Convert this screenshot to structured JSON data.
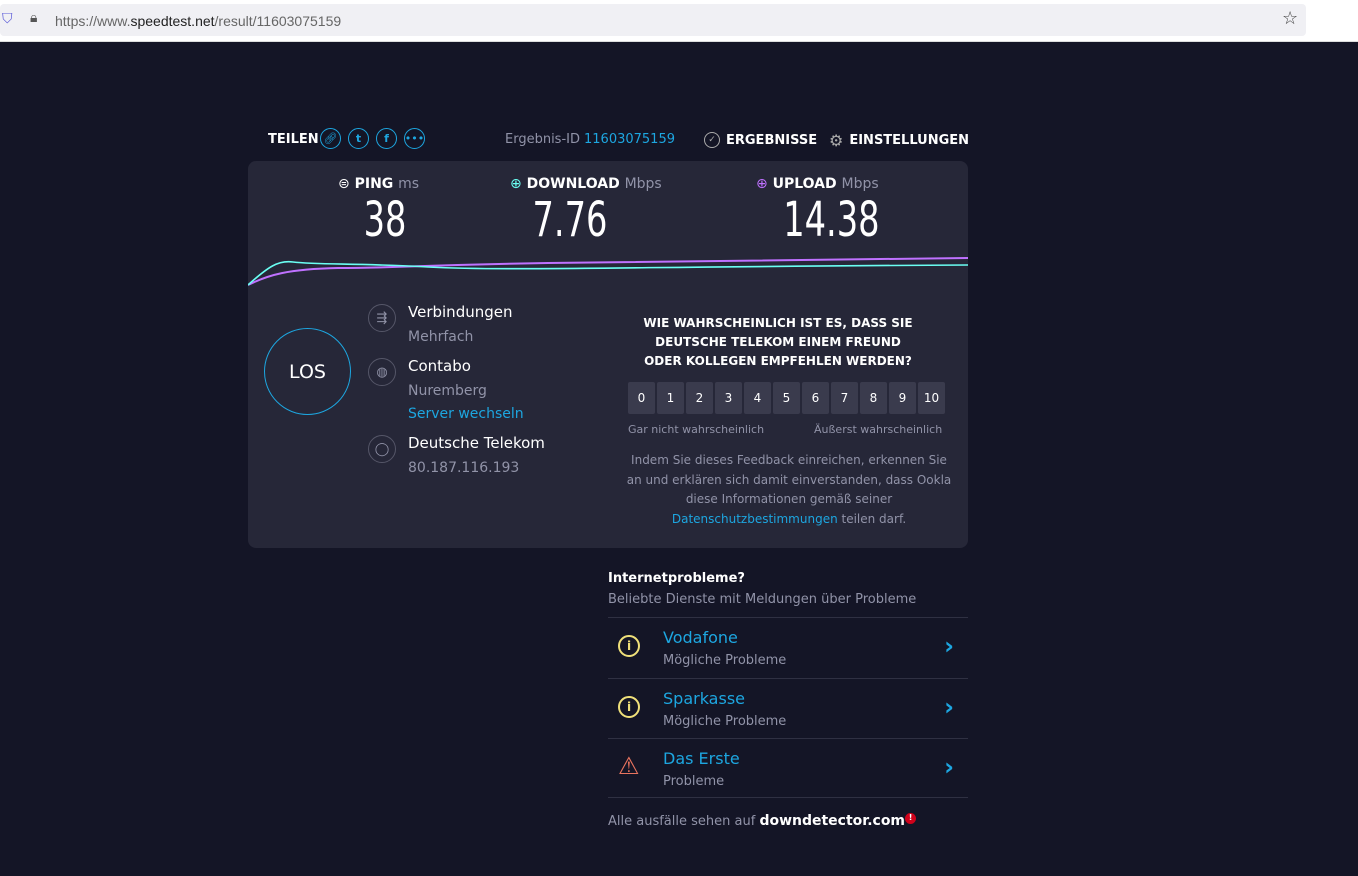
{
  "browser": {
    "url_prefix": "https://www.",
    "url_domain": "speedtest.net",
    "url_path": "/result/11603075159"
  },
  "header": {
    "share": "TEILEN",
    "result_id_label": "Ergebnis-ID",
    "result_id": "11603075159",
    "results": "ERGEBNISSE",
    "settings": "EINSTELLUNGEN"
  },
  "metrics": {
    "ping": {
      "label": "PING",
      "unit": "ms",
      "value": "38"
    },
    "download": {
      "label": "DOWNLOAD",
      "unit": "Mbps",
      "value": "7.76"
    },
    "upload": {
      "label": "UPLOAD",
      "unit": "Mbps",
      "value": "14.38"
    }
  },
  "colors": {
    "download": "#6afff3",
    "upload": "#bf71ff",
    "accent": "#1da6e0"
  },
  "go": "LOS",
  "info": {
    "connections_label": "Verbindungen",
    "connections_value": "Mehrfach",
    "server_name": "Contabo",
    "server_location": "Nuremberg",
    "change_server": "Server wechseln",
    "isp": "Deutsche Telekom",
    "ip": "80.187.116.193"
  },
  "survey": {
    "question": "WIE WAHRSCHEINLICH IST ES, DASS SIE DEUTSCHE TELEKOM EINEM FREUND ODER KOLLEGEN EMPFEHLEN WERDEN?",
    "scale": [
      "0",
      "1",
      "2",
      "3",
      "4",
      "5",
      "6",
      "7",
      "8",
      "9",
      "10"
    ],
    "low": "Gar nicht wahrscheinlich",
    "high": "Äußerst wahrscheinlich",
    "disclaimer": "Indem Sie dieses Feedback einreichen, erkennen Sie an und erklären sich damit einverstanden, dass Ookla diese Informationen gemäß seiner",
    "privacy_link": "Datenschutzbestimmungen",
    "disclaimer_end": " teilen darf."
  },
  "problems": {
    "title": "Internetprobleme?",
    "subtitle": "Beliebte Dienste mit Meldungen über Probleme",
    "items": [
      {
        "name": "Vodafone",
        "status": "Mögliche Probleme",
        "icon": "info-icon"
      },
      {
        "name": "Sparkasse",
        "status": "Mögliche Probleme",
        "icon": "info-icon"
      },
      {
        "name": "Das Erste",
        "status": "Probleme",
        "icon": "warning-icon"
      }
    ],
    "footer": "Alle ausfälle sehen auf",
    "footer_link": "downdetector.com"
  }
}
